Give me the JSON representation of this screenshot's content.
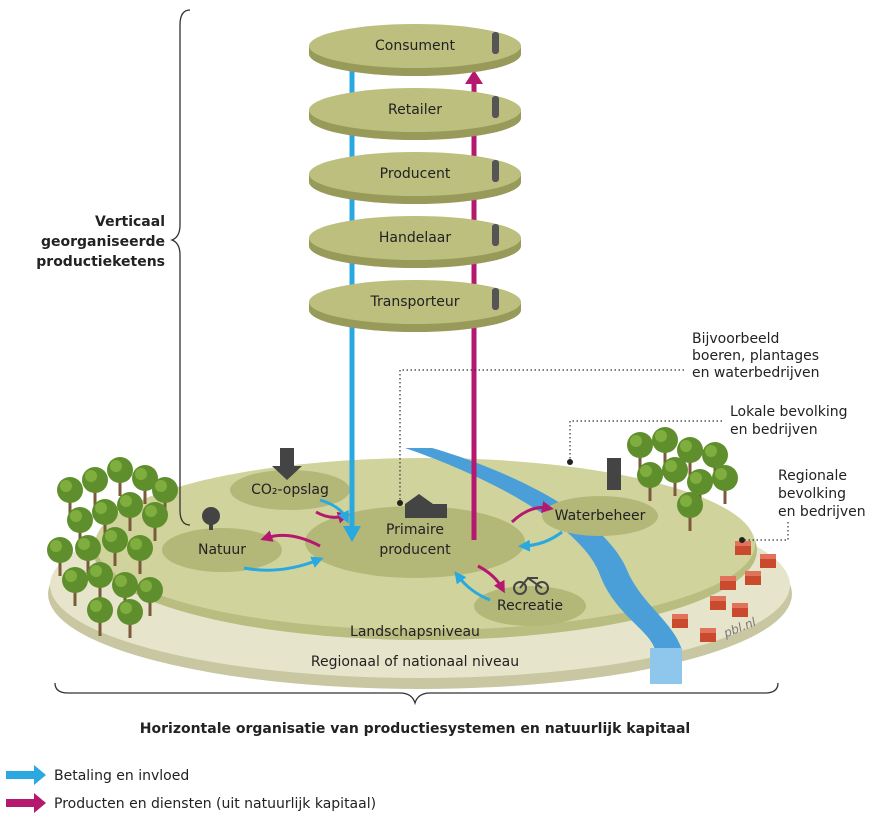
{
  "chain_layers": [
    "Consument",
    "Retailer",
    "Producent",
    "Handelaar",
    "Transporteur"
  ],
  "vertical_label": [
    "Verticaal",
    "georganiseerde",
    "productieketens"
  ],
  "annotations": {
    "farmers": [
      "Bijvoorbeeld",
      "boeren, plantages",
      "en waterbedrijven"
    ],
    "local": [
      "Lokale bevolking",
      "en bedrijven"
    ],
    "regional": [
      "Regionale",
      "bevolking",
      "en bedrijven"
    ]
  },
  "nodes": {
    "co2": "CO₂-opslag",
    "natuur": "Natuur",
    "primaire": [
      "Primaire",
      "producent"
    ],
    "water": "Waterbeheer",
    "recreatie": "Recreatie"
  },
  "levels": {
    "landscape": "Landschapsniveau",
    "regional": "Regionaal of nationaal niveau"
  },
  "source": "pbl.nl",
  "horizontal_label": "Horizontale organisatie van productiesystemen en natuurlijk kapitaal",
  "legend": [
    {
      "label": "Betaling en invloed"
    },
    {
      "label": "Producten en diensten (uit natuurlijk kapitaal)"
    }
  ]
}
